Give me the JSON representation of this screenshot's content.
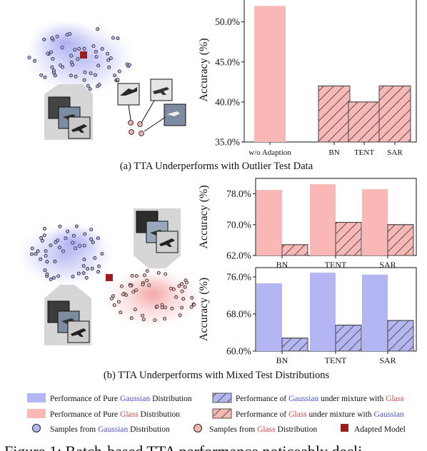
{
  "captions": {
    "a": "(a) TTA Underperforms with Outlier Test Data",
    "b": "(b) TTA Underperforms with Mixed Test Distributions",
    "figure_fragment": "Figure 1: Batch-based TTA performance noticeably decli"
  },
  "colors": {
    "gaussian": "#b3b6f2",
    "glass": "#f9b7b5",
    "adapted_model": "#a01c1c",
    "gaussian_text": "#4a4fcf",
    "glass_text": "#d64545"
  },
  "legend": {
    "pure_gaussian": {
      "pre": "Performance of Pure ",
      "hl": "Gaussian",
      "post": " Distribution"
    },
    "mix_gaussian": {
      "pre": "Performance of ",
      "hl1": "Gaussian",
      "mid": " under mixture with ",
      "hl2": "Glass"
    },
    "pure_glass": {
      "pre": "Performance of Pure ",
      "hl": "Glass",
      "post": " Distribution"
    },
    "mix_glass": {
      "pre": "Performance of ",
      "hl1": "Glass",
      "mid": " under mixture with ",
      "hl2": "Gaussian"
    },
    "samples_gaussian": {
      "pre": "Samples from ",
      "hl": "Gaussian",
      "post": " Distribution"
    },
    "samples_glass": {
      "pre": "Samples from ",
      "hl": "Glass",
      "post": " Distribution"
    },
    "adapted_model": "Adapted Model"
  },
  "chart_data": [
    {
      "type": "bar",
      "ylabel": "Accuracy (%)",
      "ylim": [
        35,
        53
      ],
      "yticks": [
        "35.0%",
        "40.0%",
        "45.0%",
        "50.0%"
      ],
      "yticks_values": [
        35,
        40,
        45,
        50
      ],
      "categories": [
        "w/o Adaption",
        "BN",
        "TENT",
        "SAR"
      ],
      "values": [
        52,
        42,
        40,
        42
      ],
      "hatched": [
        false,
        true,
        true,
        true
      ],
      "fill": "glass"
    },
    {
      "type": "bar",
      "ylabel": "Accuracy (%)",
      "ylim": [
        62,
        82
      ],
      "yticks": [
        "62.0%",
        "70.0%",
        "78.0%"
      ],
      "yticks_values": [
        62,
        70,
        78
      ],
      "categories": [
        "BN",
        "TENT",
        "SAR"
      ],
      "series": [
        {
          "values": [
            79,
            80.5,
            79.2
          ],
          "hatched": false,
          "fill": "glass"
        },
        {
          "values": [
            64.8,
            70.6,
            70
          ],
          "hatched": true,
          "fill": "glass"
        }
      ]
    },
    {
      "type": "bar",
      "ylabel": "Accuracy (%)",
      "ylim": [
        60,
        78
      ],
      "yticks": [
        "60.0%",
        "68.0%",
        "76.0%"
      ],
      "yticks_values": [
        60,
        68,
        76
      ],
      "categories": [
        "BN",
        "TENT",
        "SAR"
      ],
      "series": [
        {
          "values": [
            74.6,
            76.9,
            76.5
          ],
          "hatched": false,
          "fill": "gaussian"
        },
        {
          "values": [
            62.8,
            65.6,
            66.6
          ],
          "hatched": true,
          "fill": "gaussian"
        }
      ]
    }
  ]
}
